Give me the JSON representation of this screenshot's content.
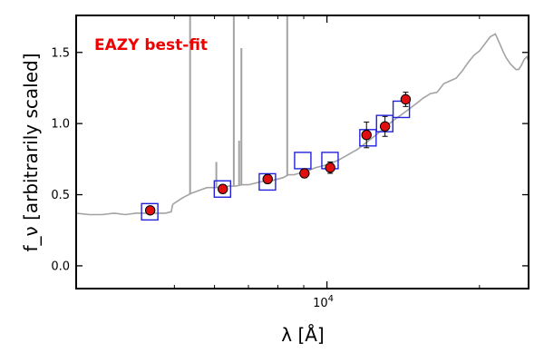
{
  "chart_data": {
    "type": "scatter",
    "annotation": "EAZY best-fit",
    "xlabel": "λ [Å]",
    "ylabel": "f_ν [arbitrarily scaled]",
    "x_scale": "log",
    "xlim": [
      3200,
      25000
    ],
    "ylim": [
      -0.16,
      1.76
    ],
    "yticks": [
      0.0,
      0.5,
      1.0,
      1.5
    ],
    "ytick_labels": [
      "0.0",
      "0.5",
      "1.0",
      "1.5"
    ],
    "xticks_major": [
      10000
    ],
    "xtick_major_labels": [
      "10^4"
    ],
    "xticks_minor": [
      5000,
      6000,
      7000,
      8000,
      9000,
      20000
    ],
    "grid": false,
    "colors": {
      "template": "#a3a3a3",
      "observed_fill": "#e01010",
      "model_box": "#2222dd",
      "annotation": "#ee0000"
    },
    "series": [
      {
        "name": "observed",
        "x": [
          4480,
          6230,
          7640,
          9030,
          10150,
          11970,
          13020,
          14300
        ],
        "y": [
          0.39,
          0.54,
          0.61,
          0.65,
          0.69,
          0.92,
          0.98,
          1.17
        ],
        "yerr": [
          0.02,
          0.03,
          0.03,
          0.03,
          0.04,
          0.09,
          0.07,
          0.05
        ]
      },
      {
        "name": "model",
        "x": [
          4470,
          6220,
          7630,
          8960,
          10140,
          12050,
          13000,
          14020
        ],
        "y": [
          0.38,
          0.54,
          0.59,
          0.74,
          0.74,
          0.9,
          1.0,
          1.1
        ]
      },
      {
        "name": "template",
        "x": [
          3200,
          3400,
          3600,
          3800,
          4000,
          4200,
          4400,
          4600,
          4800,
          4930,
          4960,
          5000,
          5200,
          5400,
          5600,
          5800,
          6000,
          6200,
          6400,
          6600,
          6800,
          7000,
          7200,
          7400,
          7600,
          7800,
          8000,
          8200,
          8400,
          8600,
          8800,
          9000,
          9200,
          9500,
          10000,
          10500,
          11000,
          11500,
          12000,
          12500,
          13000,
          13500,
          14000,
          14500,
          15000,
          15500,
          16000,
          16500,
          17000,
          17500,
          18000,
          18500,
          19000,
          19500,
          20000,
          20500,
          21000,
          21500,
          21800,
          22000,
          22300,
          22600,
          23000,
          23300,
          23600,
          23900,
          24200,
          24500,
          24800,
          25000
        ],
        "y": [
          0.37,
          0.36,
          0.36,
          0.37,
          0.36,
          0.37,
          0.37,
          0.37,
          0.37,
          0.38,
          0.43,
          0.44,
          0.48,
          0.51,
          0.53,
          0.55,
          0.55,
          0.55,
          0.56,
          0.56,
          0.57,
          0.57,
          0.58,
          0.59,
          0.6,
          0.6,
          0.61,
          0.62,
          0.64,
          0.64,
          0.65,
          0.66,
          0.67,
          0.69,
          0.71,
          0.74,
          0.78,
          0.82,
          0.87,
          0.92,
          0.97,
          1.02,
          1.06,
          1.1,
          1.14,
          1.18,
          1.21,
          1.22,
          1.28,
          1.3,
          1.32,
          1.37,
          1.43,
          1.48,
          1.51,
          1.56,
          1.61,
          1.63,
          1.58,
          1.55,
          1.5,
          1.46,
          1.42,
          1.4,
          1.38,
          1.38,
          1.41,
          1.45,
          1.47,
          1.44
        ]
      },
      {
        "name": "emission-lines",
        "x": [
          5370,
          6050,
          6550,
          6710,
          6780,
          8350
        ],
        "y": [
          1.76,
          0.73,
          1.76,
          0.88,
          1.53,
          1.76
        ]
      }
    ]
  }
}
